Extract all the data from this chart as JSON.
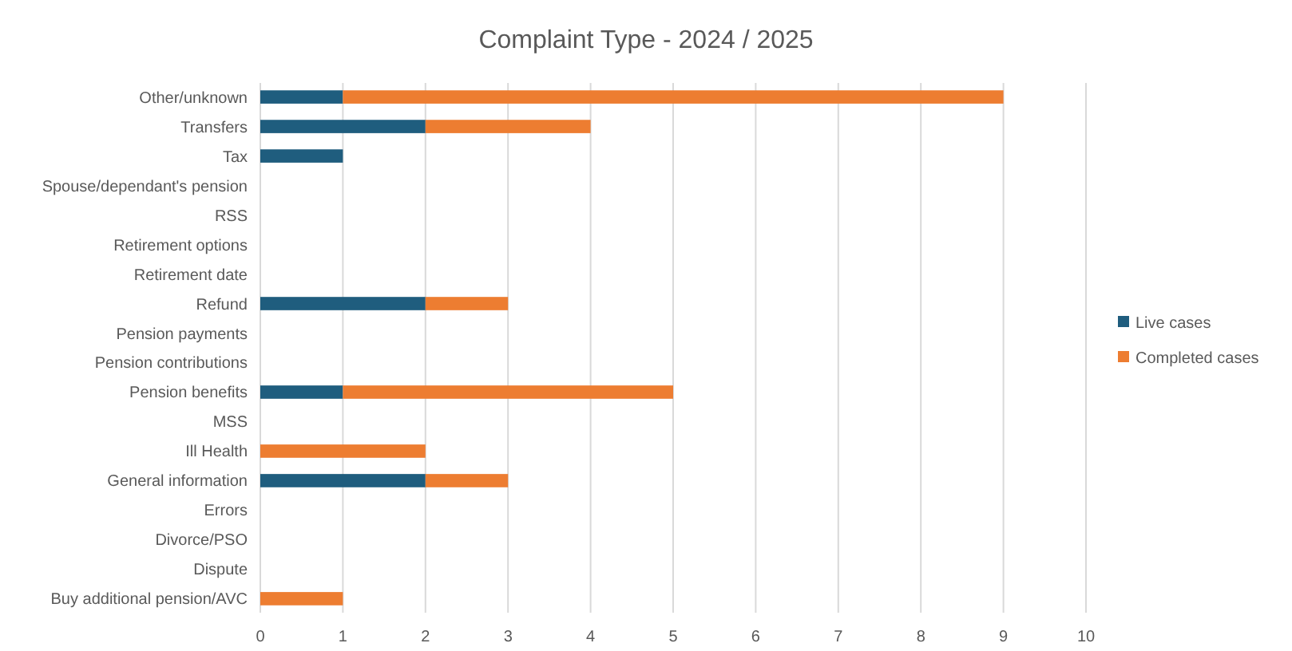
{
  "chart_data": {
    "type": "bar",
    "orientation": "horizontal",
    "stacked": true,
    "title": "Complaint Type - 2024 / 2025",
    "categories": [
      "Other/unknown",
      "Transfers",
      "Tax",
      "Spouse/dependant's pension",
      "RSS",
      "Retirement options",
      "Retirement date",
      "Refund",
      "Pension payments",
      "Pension contributions",
      "Pension benefits",
      "MSS",
      "Ill Health",
      "General information",
      "Errors",
      "Divorce/PSO",
      "Dispute",
      "Buy additional pension/AVC"
    ],
    "series": [
      {
        "name": "Live cases",
        "color": "#1f5d7e",
        "values": [
          1,
          2,
          1,
          0,
          0,
          0,
          0,
          2,
          0,
          0,
          1,
          0,
          0,
          2,
          0,
          0,
          0,
          0
        ]
      },
      {
        "name": "Completed cases",
        "color": "#ed7d31",
        "values": [
          8,
          2,
          0,
          0,
          0,
          0,
          0,
          1,
          0,
          0,
          4,
          0,
          2,
          1,
          0,
          0,
          0,
          1
        ]
      }
    ],
    "xlim": [
      0,
      10
    ],
    "xticks": [
      0,
      1,
      2,
      3,
      4,
      5,
      6,
      7,
      8,
      9,
      10
    ],
    "grid": "x",
    "legend": "right"
  }
}
